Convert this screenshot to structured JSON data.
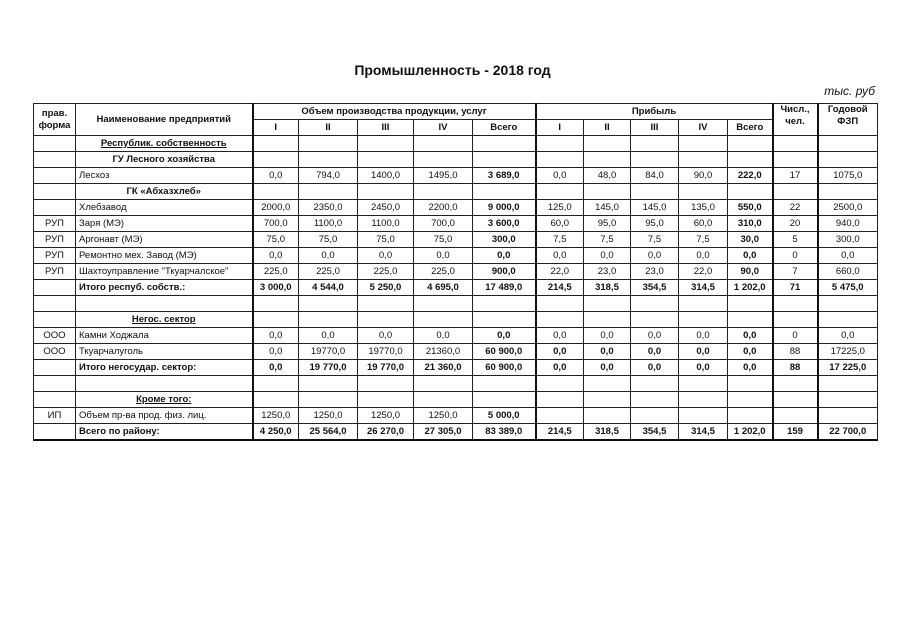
{
  "title": "Промышленность - 2018 год",
  "unit": "тыс. руб",
  "headers": {
    "form": "прав. форма",
    "name": "Наименование предприятий",
    "volume": "Объем производства продукции, услуг",
    "profit": "Прибыль",
    "staff": "Числ., чел.",
    "payroll": "Годовой ФЗП",
    "quarters": [
      "I",
      "II",
      "III",
      "IV",
      "Всего"
    ]
  },
  "rows": [
    {
      "type": "section",
      "underline": true,
      "form": "",
      "name": "Республик. собственность"
    },
    {
      "type": "section",
      "underline": false,
      "form": "",
      "name": "ГУ Лесного хозяйства"
    },
    {
      "type": "data",
      "form": "",
      "name": "Лесхоз",
      "vol": [
        "0,0",
        "794,0",
        "1400,0",
        "1495,0",
        "3 689,0"
      ],
      "profit": [
        "0,0",
        "48,0",
        "84,0",
        "90,0",
        "222,0"
      ],
      "staff": "17",
      "payroll": "1075,0"
    },
    {
      "type": "section",
      "underline": false,
      "form": "",
      "name": "ГК «Абхазхлеб»"
    },
    {
      "type": "data",
      "form": "",
      "name": "Хлебзавод",
      "vol": [
        "2000,0",
        "2350,0",
        "2450,0",
        "2200,0",
        "9 000,0"
      ],
      "profit": [
        "125,0",
        "145,0",
        "145,0",
        "135,0",
        "550,0"
      ],
      "staff": "22",
      "payroll": "2500,0"
    },
    {
      "type": "data",
      "form": "РУП",
      "name": "Заря (МЭ)",
      "vol": [
        "700,0",
        "1100,0",
        "1100,0",
        "700,0",
        "3 600,0"
      ],
      "profit": [
        "60,0",
        "95,0",
        "95,0",
        "60,0",
        "310,0"
      ],
      "staff": "20",
      "payroll": "940,0"
    },
    {
      "type": "data",
      "form": "РУП",
      "name": "Аргонавт (МЭ)",
      "vol": [
        "75,0",
        "75,0",
        "75,0",
        "75,0",
        "300,0"
      ],
      "profit": [
        "7,5",
        "7,5",
        "7,5",
        "7,5",
        "30,0"
      ],
      "staff": "5",
      "payroll": "300,0"
    },
    {
      "type": "data",
      "form": "РУП",
      "name": "Ремонтно мех. Завод (МЭ)",
      "vol": [
        "0,0",
        "0,0",
        "0,0",
        "0,0",
        "0,0"
      ],
      "profit": [
        "0,0",
        "0,0",
        "0,0",
        "0,0",
        "0,0"
      ],
      "staff": "0",
      "payroll": "0,0"
    },
    {
      "type": "data",
      "form": "РУП",
      "name": "Шахтоуправление \"Ткуарчалское\"",
      "vol": [
        "225,0",
        "225,0",
        "225,0",
        "225,0",
        "900,0"
      ],
      "profit": [
        "22,0",
        "23,0",
        "23,0",
        "22,0",
        "90,0"
      ],
      "staff": "7",
      "payroll": "660,0"
    },
    {
      "type": "total",
      "form": "",
      "name": "Итого респуб. собств.:",
      "vol": [
        "3 000,0",
        "4 544,0",
        "5 250,0",
        "4 695,0",
        "17 489,0"
      ],
      "profit": [
        "214,5",
        "318,5",
        "354,5",
        "314,5",
        "1 202,0"
      ],
      "staff": "71",
      "payroll": "5 475,0"
    },
    {
      "type": "blank"
    },
    {
      "type": "section",
      "underline": true,
      "form": "",
      "name": "Негос. сектор"
    },
    {
      "type": "data",
      "form": "ООО",
      "name": "Камни Ходжала",
      "vol": [
        "0,0",
        "0,0",
        "0,0",
        "0,0",
        "0,0"
      ],
      "profit": [
        "0,0",
        "0,0",
        "0,0",
        "0,0",
        "0,0"
      ],
      "staff": "0",
      "payroll": "0,0"
    },
    {
      "type": "data",
      "boldprofit": true,
      "form": "ООО",
      "name": "Ткуарчалуголь",
      "vol": [
        "0,0",
        "19770,0",
        "19770,0",
        "21360,0",
        "60 900,0"
      ],
      "profit": [
        "0,0",
        "0,0",
        "0,0",
        "0,0",
        "0,0"
      ],
      "staff": "88",
      "payroll": "17225,0"
    },
    {
      "type": "total",
      "form": "",
      "name": "Итого негосудар. сектор:",
      "vol": [
        "0,0",
        "19 770,0",
        "19 770,0",
        "21 360,0",
        "60 900,0"
      ],
      "profit": [
        "0,0",
        "0,0",
        "0,0",
        "0,0",
        "0,0"
      ],
      "staff": "88",
      "payroll": "17 225,0"
    },
    {
      "type": "blank"
    },
    {
      "type": "section",
      "underline": true,
      "form": "",
      "name": "Кроме того:"
    },
    {
      "type": "data",
      "form": "ИП",
      "name": "Объем пр-ва прод. физ. лиц.",
      "vol": [
        "1250,0",
        "1250,0",
        "1250,0",
        "1250,0",
        "5 000,0"
      ],
      "profit": [
        "",
        "",
        "",
        "",
        ""
      ],
      "staff": "",
      "payroll": ""
    },
    {
      "type": "total",
      "form": "",
      "name": "Всего по району:",
      "vol": [
        "4 250,0",
        "25 564,0",
        "26 270,0",
        "27 305,0",
        "83 389,0"
      ],
      "profit": [
        "214,5",
        "318,5",
        "354,5",
        "314,5",
        "1 202,0"
      ],
      "staff": "159",
      "payroll": "22 700,0"
    }
  ]
}
